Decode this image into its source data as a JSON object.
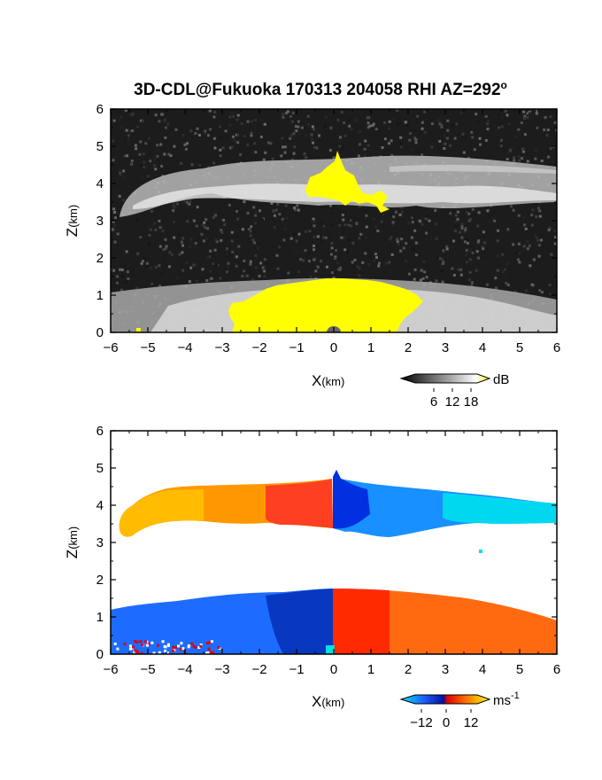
{
  "title": "3D-CDL@Fukuoka 170313 204058 RHI AZ=292",
  "title_superscript": "o",
  "chart_data": [
    {
      "type": "heatmap",
      "quantity": "backscatter intensity",
      "xlabel_main": "X",
      "xlabel_unit": "(km)",
      "ylabel_main": "Z",
      "ylabel_unit": "(km)",
      "xlim": [
        -6,
        6
      ],
      "ylim": [
        0,
        6
      ],
      "xticks": [
        "-6",
        "-5",
        "-4",
        "-3",
        "-2",
        "-1",
        "0",
        "1",
        "2",
        "3",
        "4",
        "5",
        "6"
      ],
      "yticks": [
        "0",
        "1",
        "2",
        "3",
        "4",
        "5",
        "6"
      ],
      "colorbar": {
        "unit": "dB",
        "ticks": [
          "6",
          "12",
          "18"
        ],
        "range": [
          0,
          20
        ]
      },
      "features": [
        {
          "kind": "upper-layer",
          "x_range": [
            -6,
            6
          ],
          "z_bottom": 3.3,
          "z_top": 4.6
        },
        {
          "kind": "saturated-core-upper",
          "x_range": [
            -0.9,
            1.5
          ],
          "z_range": [
            3.3,
            4.8
          ]
        },
        {
          "kind": "lower-layer",
          "x_range": [
            -6,
            6
          ],
          "z_bottom": 0,
          "z_top": 1.6
        },
        {
          "kind": "saturated-core-lower",
          "x_range": [
            -2.8,
            2.6
          ],
          "z_range": [
            0,
            1.5
          ]
        }
      ]
    },
    {
      "type": "heatmap",
      "quantity": "Doppler velocity",
      "xlabel_main": "X",
      "xlabel_unit": "(km)",
      "ylabel_main": "Z",
      "ylabel_unit": "(km)",
      "xlim": [
        -6,
        6
      ],
      "ylim": [
        0,
        6
      ],
      "xticks": [
        "-6",
        "-5",
        "-4",
        "-3",
        "-2",
        "-1",
        "0",
        "1",
        "2",
        "3",
        "4",
        "5",
        "6"
      ],
      "yticks": [
        "0",
        "1",
        "2",
        "3",
        "4",
        "5",
        "6"
      ],
      "colorbar": {
        "unit": "ms",
        "unit_sup": "-1",
        "ticks": [
          "-12",
          "0",
          "12"
        ],
        "range": [
          -15,
          15
        ]
      },
      "features": [
        {
          "kind": "upper-layer",
          "x_range": [
            -5.9,
            6
          ],
          "z_bottom": 3.2,
          "z_top": 4.8,
          "velocity_left": 8,
          "velocity_right": -11
        },
        {
          "kind": "lower-layer",
          "x_range": [
            -6,
            6
          ],
          "z_bottom": 0,
          "z_top": 1.6,
          "velocity_left": -8,
          "velocity_right": 6
        }
      ]
    }
  ]
}
